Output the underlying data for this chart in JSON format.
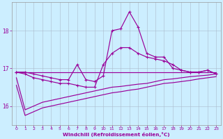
{
  "xlabel": "Windchill (Refroidissement éolien,°C)",
  "bg_color": "#cceeff",
  "line_color": "#990099",
  "grid_color": "#aabbcc",
  "x_hours": [
    0,
    1,
    2,
    3,
    4,
    5,
    6,
    7,
    8,
    9,
    10,
    11,
    12,
    13,
    14,
    15,
    16,
    17,
    18,
    19,
    20,
    21,
    22,
    23
  ],
  "line_flat": [
    16.9,
    16.9,
    16.9,
    16.9,
    16.9,
    16.9,
    16.9,
    16.9,
    16.9,
    16.9,
    16.9,
    16.9,
    16.9,
    16.9,
    16.9,
    16.9,
    16.9,
    16.9,
    16.9,
    16.9,
    16.9,
    16.9,
    16.9,
    16.9
  ],
  "line_peak": [
    16.9,
    16.9,
    16.85,
    16.8,
    16.75,
    16.7,
    16.7,
    17.1,
    16.7,
    16.65,
    16.8,
    18.0,
    18.05,
    18.5,
    18.1,
    17.4,
    17.3,
    17.3,
    17.0,
    16.95,
    16.9,
    16.9,
    16.95,
    16.85
  ],
  "line_wavy": [
    16.9,
    16.85,
    16.75,
    16.7,
    16.65,
    16.6,
    16.6,
    16.55,
    16.5,
    16.5,
    17.1,
    17.4,
    17.55,
    17.55,
    17.4,
    17.3,
    17.25,
    17.2,
    17.1,
    16.95,
    16.9,
    16.9,
    16.95,
    16.85
  ],
  "line_diag1": [
    16.75,
    15.9,
    16.0,
    16.1,
    16.15,
    16.2,
    16.25,
    16.3,
    16.35,
    16.4,
    16.45,
    16.5,
    16.52,
    16.55,
    16.58,
    16.6,
    16.65,
    16.7,
    16.72,
    16.75,
    16.78,
    16.8,
    16.82,
    16.85
  ],
  "line_diag2": [
    16.55,
    15.75,
    15.85,
    15.95,
    16.0,
    16.05,
    16.1,
    16.15,
    16.2,
    16.25,
    16.3,
    16.35,
    16.38,
    16.42,
    16.45,
    16.5,
    16.55,
    16.6,
    16.62,
    16.65,
    16.68,
    16.72,
    16.75,
    16.78
  ],
  "ylim": [
    15.5,
    18.75
  ],
  "yticks": [
    16,
    17,
    18
  ],
  "xlim": [
    -0.5,
    23.5
  ],
  "xticks": [
    0,
    1,
    2,
    3,
    4,
    5,
    6,
    7,
    8,
    9,
    10,
    11,
    12,
    13,
    14,
    15,
    16,
    17,
    18,
    19,
    20,
    21,
    22,
    23
  ]
}
